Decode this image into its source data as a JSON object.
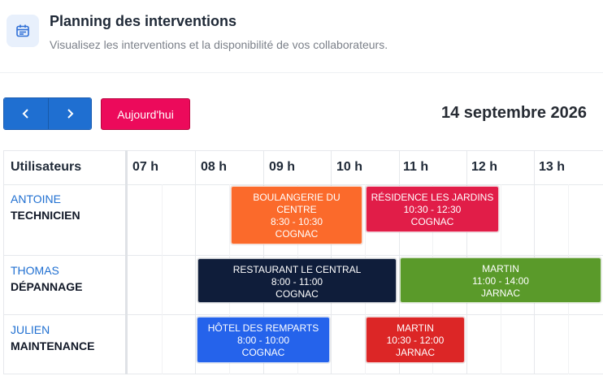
{
  "header": {
    "title": "Planning des interventions",
    "subtitle": "Visualisez les interventions et la disponibilité de vos collaborateurs.",
    "icon": "calendar-icon"
  },
  "toolbar": {
    "prev_icon": "chevron-left-icon",
    "next_icon": "chevron-right-icon",
    "today_label": "Aujourd'hui",
    "current_date": "14 septembre 2026",
    "colors": {
      "nav": "#1f6fd1",
      "today": "#ec0a5b"
    }
  },
  "grid": {
    "users_header": "Utilisateurs",
    "hours": [
      "07 h",
      "08 h",
      "09 h",
      "10 h",
      "11 h",
      "12 h",
      "13 h"
    ]
  },
  "users": [
    {
      "name": "ANTOINE",
      "role": "TECHNICIEN"
    },
    {
      "name": "THOMAS",
      "role": "DÉPANNAGE"
    },
    {
      "name": "JULIEN",
      "role": "MAINTENANCE"
    }
  ],
  "events": [
    {
      "title": "BOULANGERIE DU CENTRE",
      "time": "8:30 - 10:30",
      "location": "COGNAC",
      "color": "#fb6a2b"
    },
    {
      "title": "RÉSIDENCE LES JARDINS",
      "time": "10:30 - 12:30",
      "location": "COGNAC",
      "color": "#e11d48"
    },
    {
      "title": "RESTAURANT LE CENTRAL",
      "time": "8:00 - 11:00",
      "location": "COGNAC",
      "color": "#0f1d3a"
    },
    {
      "title": "MARTIN",
      "time": "11:00 - 14:00",
      "location": "JARNAC",
      "color": "#5a9a2a"
    },
    {
      "title": "HÔTEL DES REMPARTS",
      "time": "8:00 - 10:00",
      "location": "COGNAC",
      "color": "#2563eb"
    },
    {
      "title": "MARTIN",
      "time": "10:30 - 12:00",
      "location": "JARNAC",
      "color": "#dc2626"
    }
  ]
}
